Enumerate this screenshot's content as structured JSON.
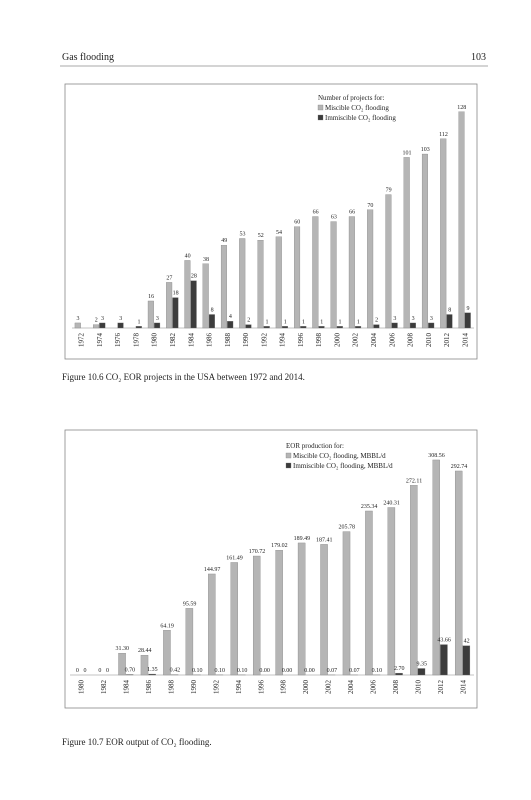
{
  "header": {
    "left": "Gas flooding",
    "right": "103"
  },
  "chart_data": [
    {
      "type": "bar",
      "caption": "Figure 10.6 CO₂ EOR projects in the USA between 1972 and 2014.",
      "legend_title": "Number of projects for:",
      "categories": [
        "1972",
        "1974",
        "1976",
        "1978",
        "1980",
        "1982",
        "1984",
        "1986",
        "1988",
        "1990",
        "1992",
        "1994",
        "1996",
        "1998",
        "2000",
        "2002",
        "2004",
        "2006",
        "2008",
        "2010",
        "2012",
        "2014"
      ],
      "series": [
        {
          "name": "Miscible CO₂ flooding",
          "color": "#b5b5b5",
          "values": [
            3,
            2,
            0,
            0,
            16,
            27,
            40,
            38,
            49,
            53,
            52,
            54,
            60,
            66,
            63,
            66,
            70,
            79,
            101,
            103,
            112,
            128
          ]
        },
        {
          "name": "Immiscible CO₂ flooding",
          "color": "#3c3c3c",
          "values": [
            0,
            3,
            3,
            1,
            3,
            18,
            28,
            8,
            4,
            2,
            1,
            1,
            1,
            1,
            1,
            1,
            2,
            3,
            3,
            3,
            8,
            9
          ]
        }
      ],
      "ylim": [
        0,
        135
      ]
    },
    {
      "type": "bar",
      "caption": "Figure 10.7 EOR output of CO₂ flooding.",
      "legend_title": "EOR production for:",
      "categories": [
        "1980",
        "1982",
        "1984",
        "1986",
        "1988",
        "1990",
        "1992",
        "1994",
        "1996",
        "1998",
        "2000",
        "2002",
        "2004",
        "2006",
        "2008",
        "2010",
        "2012",
        "2014"
      ],
      "series": [
        {
          "name": "Miscible CO₂ flooding, MBBL/d",
          "color": "#b5b5b5",
          "values": [
            0,
            0,
            31.3,
            28.44,
            64.19,
            95.59,
            144.97,
            161.49,
            170.72,
            179.02,
            189.49,
            187.41,
            205.78,
            235.34,
            240.31,
            272.11,
            308.56,
            292.74
          ],
          "value_labels": [
            "0",
            "0",
            "31.30",
            "28.44",
            "64.19",
            "95.59",
            "144.97",
            "161.49",
            "170.72",
            "179.02",
            "189.49",
            "187.41",
            "205.78",
            "235.34",
            "240.31",
            "272.11",
            "308.56",
            "292.74"
          ]
        },
        {
          "name": "Immiscible CO₂ flooding, MBBL/d",
          "color": "#3c3c3c",
          "values": [
            0,
            0,
            0.7,
            1.35,
            0.42,
            0.1,
            0.1,
            0.1,
            0,
            0,
            0,
            0.07,
            0.07,
            0.1,
            2.7,
            9.35,
            43.66,
            42
          ],
          "value_labels": [
            "0",
            "0",
            "0.70",
            "1.35",
            "0.42",
            "0.10",
            "0.10",
            "0.10",
            "0.00",
            "0.00",
            "0.00",
            "0.07",
            "0.07",
            "0.10",
            "2.70",
            "9.35",
            "43.66",
            "42"
          ]
        }
      ],
      "ylim": [
        0,
        330
      ]
    }
  ]
}
